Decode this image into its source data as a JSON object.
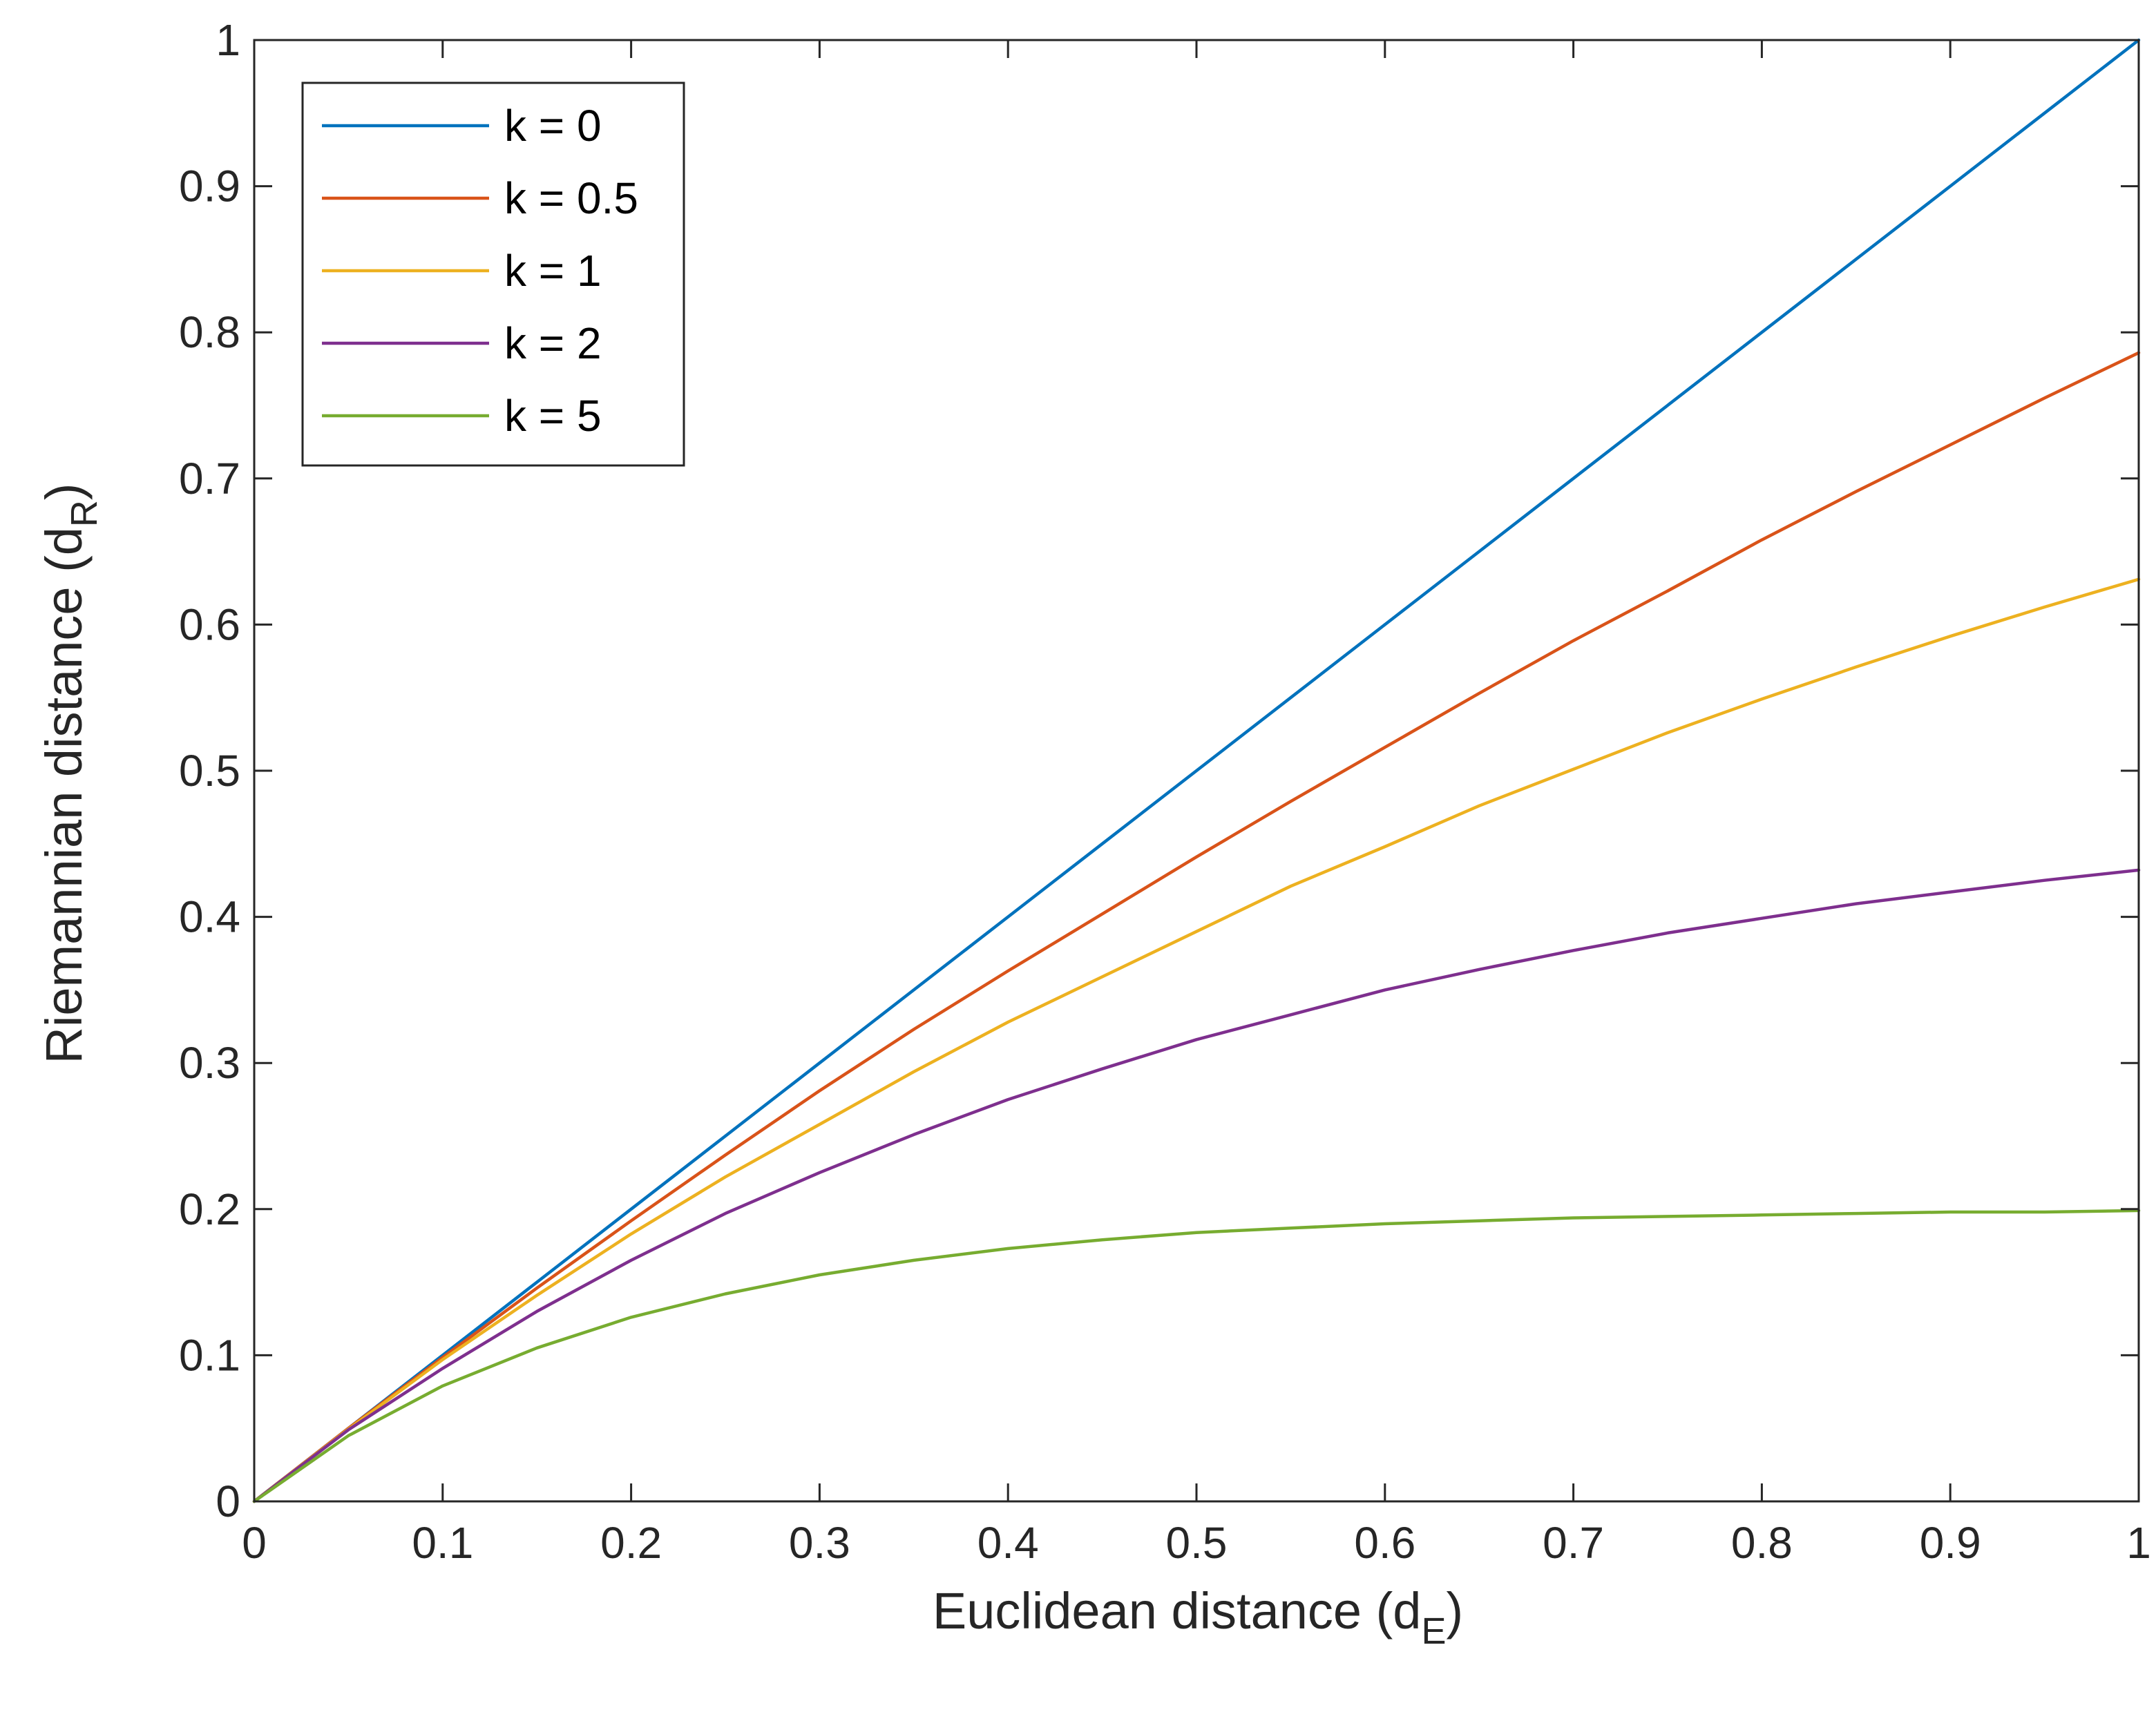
{
  "chart_data": {
    "type": "line",
    "title": "",
    "xlabel": {
      "main": "Euclidean distance (d",
      "sub": "E",
      "close": ")"
    },
    "ylabel": {
      "main": "Riemannian distance (d",
      "sub": "R",
      "close": ")"
    },
    "xlim": [
      0,
      1
    ],
    "ylim": [
      0,
      1
    ],
    "xticks": [
      "0",
      "0.1",
      "0.2",
      "0.3",
      "0.4",
      "0.5",
      "0.6",
      "0.7",
      "0.8",
      "0.9",
      "1"
    ],
    "yticks": [
      "0",
      "0.1",
      "0.2",
      "0.3",
      "0.4",
      "0.5",
      "0.6",
      "0.7",
      "0.8",
      "0.9",
      "1"
    ],
    "grid": false,
    "legend_position": "top-left",
    "x": [
      0,
      0.05,
      0.1,
      0.15,
      0.2,
      0.25,
      0.3,
      0.35,
      0.4,
      0.45,
      0.5,
      0.55,
      0.6,
      0.65,
      0.7,
      0.75,
      0.8,
      0.85,
      0.9,
      0.95,
      1
    ],
    "series": [
      {
        "name": "k = 0",
        "color": "#0072BD",
        "values": [
          0,
          0.05,
          0.1,
          0.15,
          0.2,
          0.25,
          0.3,
          0.35,
          0.4,
          0.45,
          0.5,
          0.55,
          0.6,
          0.65,
          0.7,
          0.75,
          0.8,
          0.85,
          0.9,
          0.95,
          1
        ]
      },
      {
        "name": "k = 0.5",
        "color": "#D95319",
        "values": [
          0,
          0.05,
          0.0985,
          0.146,
          0.192,
          0.237,
          0.281,
          0.323,
          0.363,
          0.402,
          0.441,
          0.479,
          0.516,
          0.553,
          0.589,
          0.623,
          0.658,
          0.691,
          0.723,
          0.755,
          0.786
        ]
      },
      {
        "name": "k = 1",
        "color": "#EDB120",
        "values": [
          0,
          0.0495,
          0.097,
          0.141,
          0.183,
          0.222,
          0.258,
          0.294,
          0.328,
          0.359,
          0.39,
          0.421,
          0.448,
          0.476,
          0.501,
          0.526,
          0.549,
          0.571,
          0.592,
          0.612,
          0.631
        ]
      },
      {
        "name": "k = 2",
        "color": "#7E2F8E",
        "values": [
          0,
          0.049,
          0.091,
          0.13,
          0.165,
          0.197,
          0.225,
          0.251,
          0.275,
          0.296,
          0.316,
          0.333,
          0.35,
          0.364,
          0.377,
          0.389,
          0.399,
          0.409,
          0.417,
          0.425,
          0.432
        ]
      },
      {
        "name": "k = 5",
        "color": "#77AC30",
        "values": [
          0,
          0.045,
          0.079,
          0.105,
          0.126,
          0.142,
          0.155,
          0.165,
          0.173,
          0.179,
          0.184,
          0.187,
          0.19,
          0.192,
          0.194,
          0.195,
          0.196,
          0.197,
          0.198,
          0.198,
          0.199
        ]
      }
    ]
  }
}
